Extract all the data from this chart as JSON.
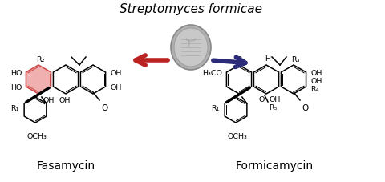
{
  "title": "Streptomyces formicae",
  "label_left": "Fasamycin",
  "label_right": "Formicamycin",
  "arrow_left_color": "#bb2222",
  "arrow_right_color": "#2b2b7a",
  "bg_color": "#ffffff",
  "title_fontsize": 11,
  "label_fontsize": 10,
  "highlight_color_face": "#f0b0b0",
  "highlight_color_edge": "#cc4444",
  "coin_color": "#aaaaaa",
  "coin_inner": "#c0c0c0"
}
